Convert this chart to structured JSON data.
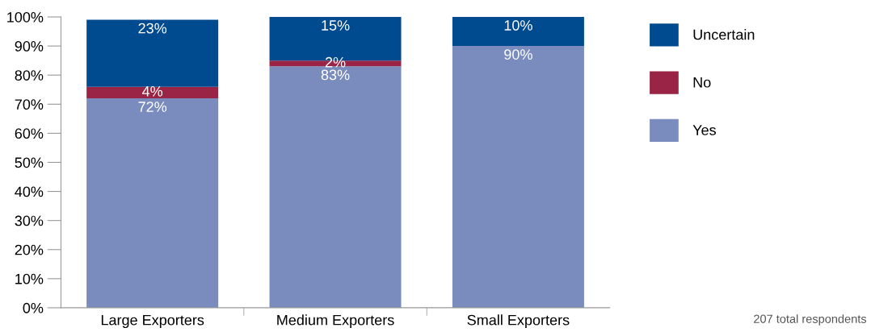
{
  "chart_data": {
    "type": "bar",
    "stacked": true,
    "categories": [
      "Large Exporters",
      "Medium Exporters",
      "Small Exporters"
    ],
    "series": [
      {
        "name": "Yes",
        "color": "#7a8cbe",
        "values": [
          72,
          83,
          90
        ],
        "value_labels": [
          "72%",
          "83%",
          "90%"
        ]
      },
      {
        "name": "No",
        "color": "#9a2446",
        "values": [
          4,
          2,
          null
        ],
        "value_labels": [
          "4%",
          "2%",
          null
        ]
      },
      {
        "name": "Uncertain",
        "color": "#004b8f",
        "values": [
          23,
          15,
          10
        ],
        "value_labels": [
          "23%",
          "15%",
          "10%"
        ]
      }
    ],
    "ylim": [
      0,
      100
    ],
    "yticks": [
      {
        "value": 0,
        "label": "0%"
      },
      {
        "value": 10,
        "label": "10%"
      },
      {
        "value": 20,
        "label": "20%"
      },
      {
        "value": 30,
        "label": "30%"
      },
      {
        "value": 40,
        "label": "40%"
      },
      {
        "value": 50,
        "label": "50%"
      },
      {
        "value": 60,
        "label": "60%"
      },
      {
        "value": 70,
        "label": "70%"
      },
      {
        "value": 80,
        "label": "80%"
      },
      {
        "value": 90,
        "label": "90%"
      },
      {
        "value": 100,
        "label": "100%"
      }
    ],
    "grid": false,
    "legend": "top right",
    "annotations": [
      "207 total respondents"
    ]
  }
}
